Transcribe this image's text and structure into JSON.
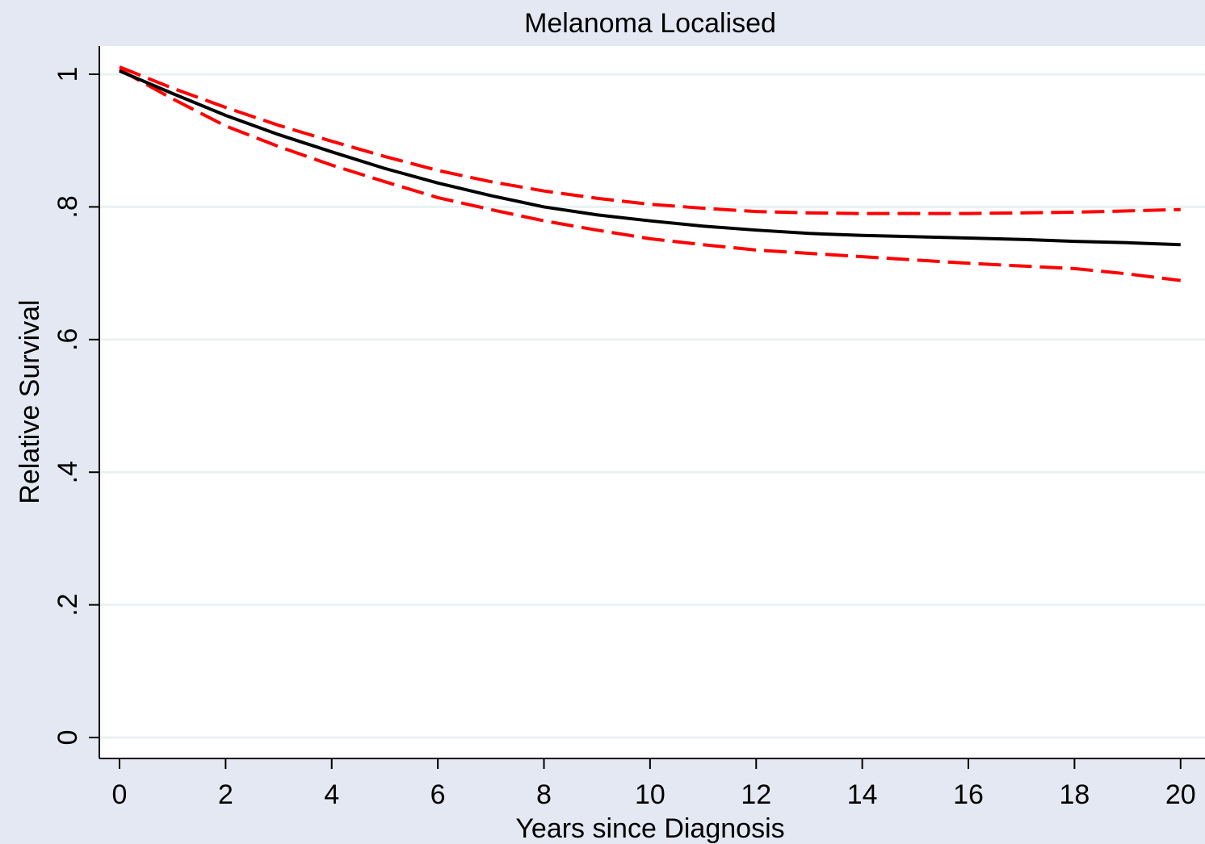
{
  "chart_data": {
    "type": "line",
    "title": "Melanoma Localised",
    "x_label": "Years since Diagnosis",
    "y_label": "Relative Survival",
    "x": [
      0,
      1,
      2,
      3,
      4,
      5,
      6,
      7,
      8,
      9,
      10,
      11,
      12,
      13,
      14,
      15,
      16,
      17,
      18,
      19,
      20
    ],
    "series": [
      {
        "color": "#000000",
        "dashed": false,
        "values": [
          1.005,
          0.971,
          0.938,
          0.909,
          0.883,
          0.858,
          0.836,
          0.817,
          0.8,
          0.788,
          0.779,
          0.771,
          0.765,
          0.76,
          0.757,
          0.755,
          0.753,
          0.751,
          0.748,
          0.746,
          0.743
        ]
      },
      {
        "color": "#ff0000",
        "dashed": true,
        "values": [
          1.011,
          0.979,
          0.95,
          0.923,
          0.899,
          0.876,
          0.855,
          0.838,
          0.824,
          0.813,
          0.804,
          0.798,
          0.793,
          0.791,
          0.79,
          0.79,
          0.79,
          0.791,
          0.792,
          0.794,
          0.796
        ]
      },
      {
        "color": "#ff0000",
        "dashed": true,
        "values": [
          1.007,
          0.963,
          0.922,
          0.891,
          0.863,
          0.838,
          0.814,
          0.796,
          0.779,
          0.765,
          0.752,
          0.743,
          0.735,
          0.73,
          0.725,
          0.72,
          0.715,
          0.711,
          0.707,
          0.699,
          0.689
        ]
      }
    ],
    "xlim": [
      -0.38,
      20.46
    ],
    "ylim": [
      -0.0316,
      1.0426
    ],
    "xticks": [
      0,
      2,
      4,
      6,
      8,
      10,
      12,
      14,
      16,
      18,
      20
    ],
    "yticks": [
      0,
      {
        "value": 0.2,
        "label": ".2"
      },
      {
        "value": 0.4,
        "label": ".4"
      },
      {
        "value": 0.6,
        "label": ".6"
      },
      {
        "value": 0.8,
        "label": ".8"
      },
      1
    ],
    "grid": true
  }
}
